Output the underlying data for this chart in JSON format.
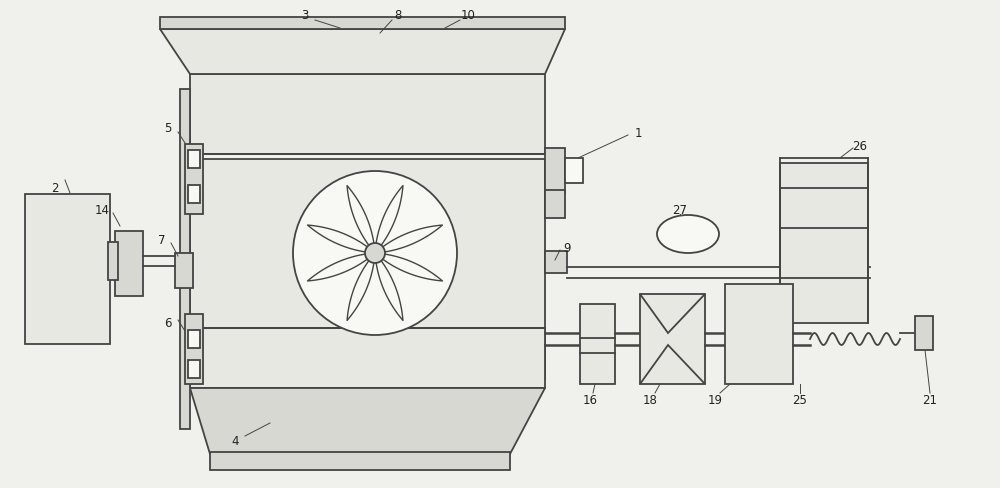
{
  "bg_color": "#f0f0ec",
  "line_color": "#444444",
  "fill_light": "#e8e8e2",
  "fill_mid": "#d8d8d2",
  "fill_white": "#f8f8f4"
}
